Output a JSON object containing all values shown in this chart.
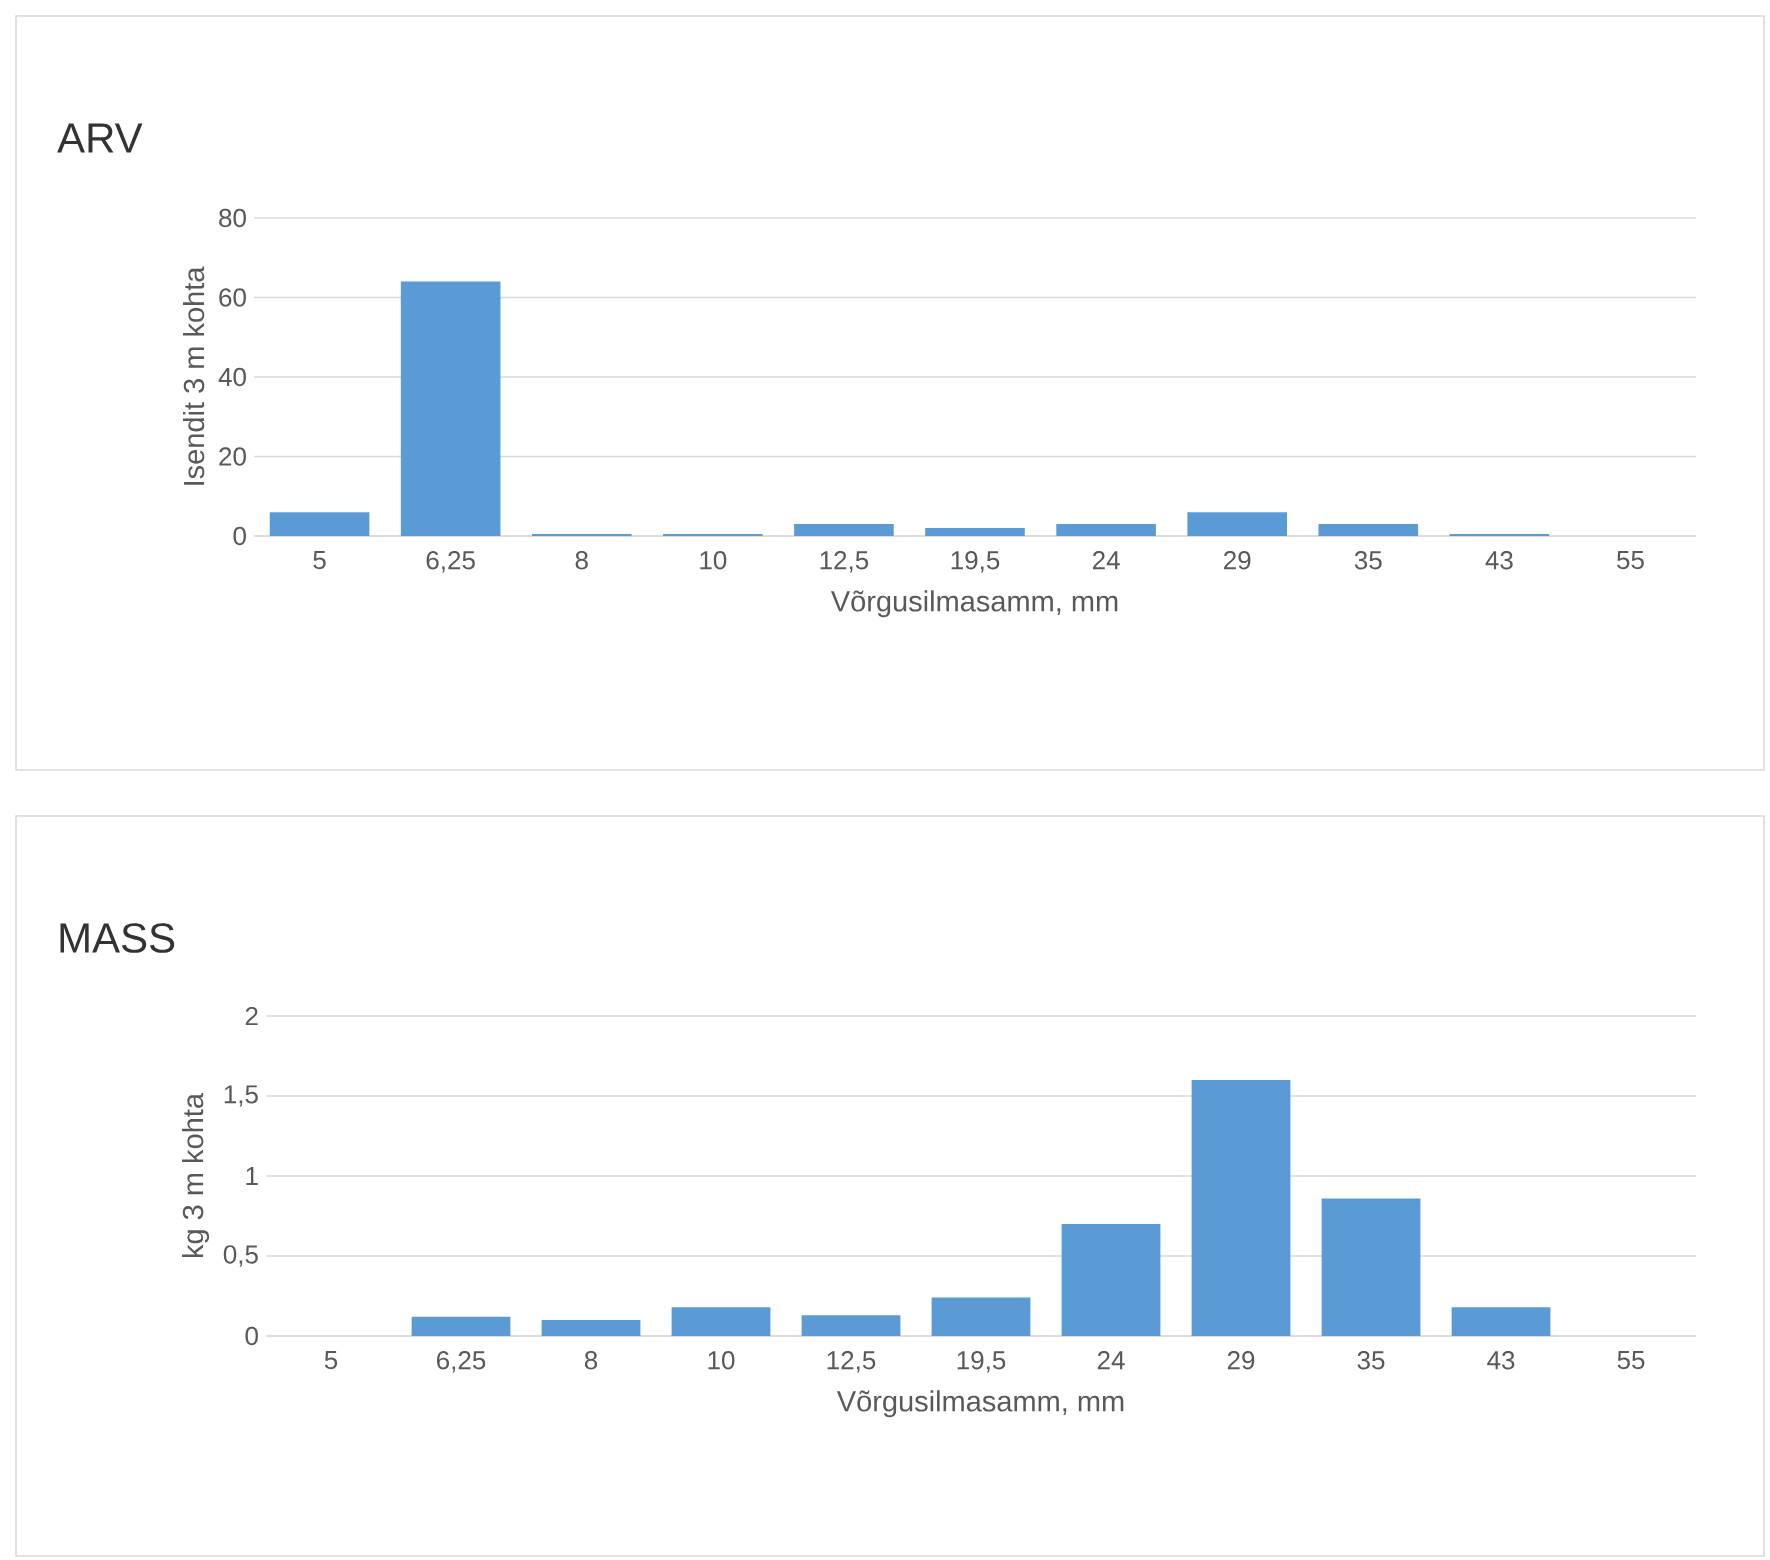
{
  "chart_data": [
    {
      "type": "bar",
      "title": "ARV",
      "xlabel": "Võrgusilmasamm, mm",
      "ylabel": "Isendit 3 m kohta",
      "color": "#5b9bd5",
      "grid": "y",
      "categories": [
        "5",
        "6,25",
        "8",
        "10",
        "12,5",
        "19,5",
        "24",
        "29",
        "35",
        "43",
        "55"
      ],
      "values": [
        6,
        64,
        0.5,
        0.5,
        3,
        2,
        3,
        6,
        3,
        0.5,
        0
      ],
      "ylim": [
        0,
        80
      ],
      "yticks": [
        0,
        20,
        40,
        60,
        80
      ]
    },
    {
      "type": "bar",
      "title": "MASS",
      "xlabel": "Võrgusilmasamm, mm",
      "ylabel": "kg 3 m kohta",
      "color": "#5b9bd5",
      "grid": "y",
      "categories": [
        "5",
        "6,25",
        "8",
        "10",
        "12,5",
        "19,5",
        "24",
        "29",
        "35",
        "43",
        "55"
      ],
      "values": [
        0,
        0.12,
        0.1,
        0.18,
        0.13,
        0.24,
        0.7,
        1.6,
        0.86,
        0.18,
        0
      ],
      "ylim": [
        0,
        2
      ],
      "yticks": [
        0,
        {
          "value": 0.5,
          "label": "0,5"
        },
        1,
        {
          "value": 1.5,
          "label": "1,5"
        },
        2
      ]
    }
  ]
}
